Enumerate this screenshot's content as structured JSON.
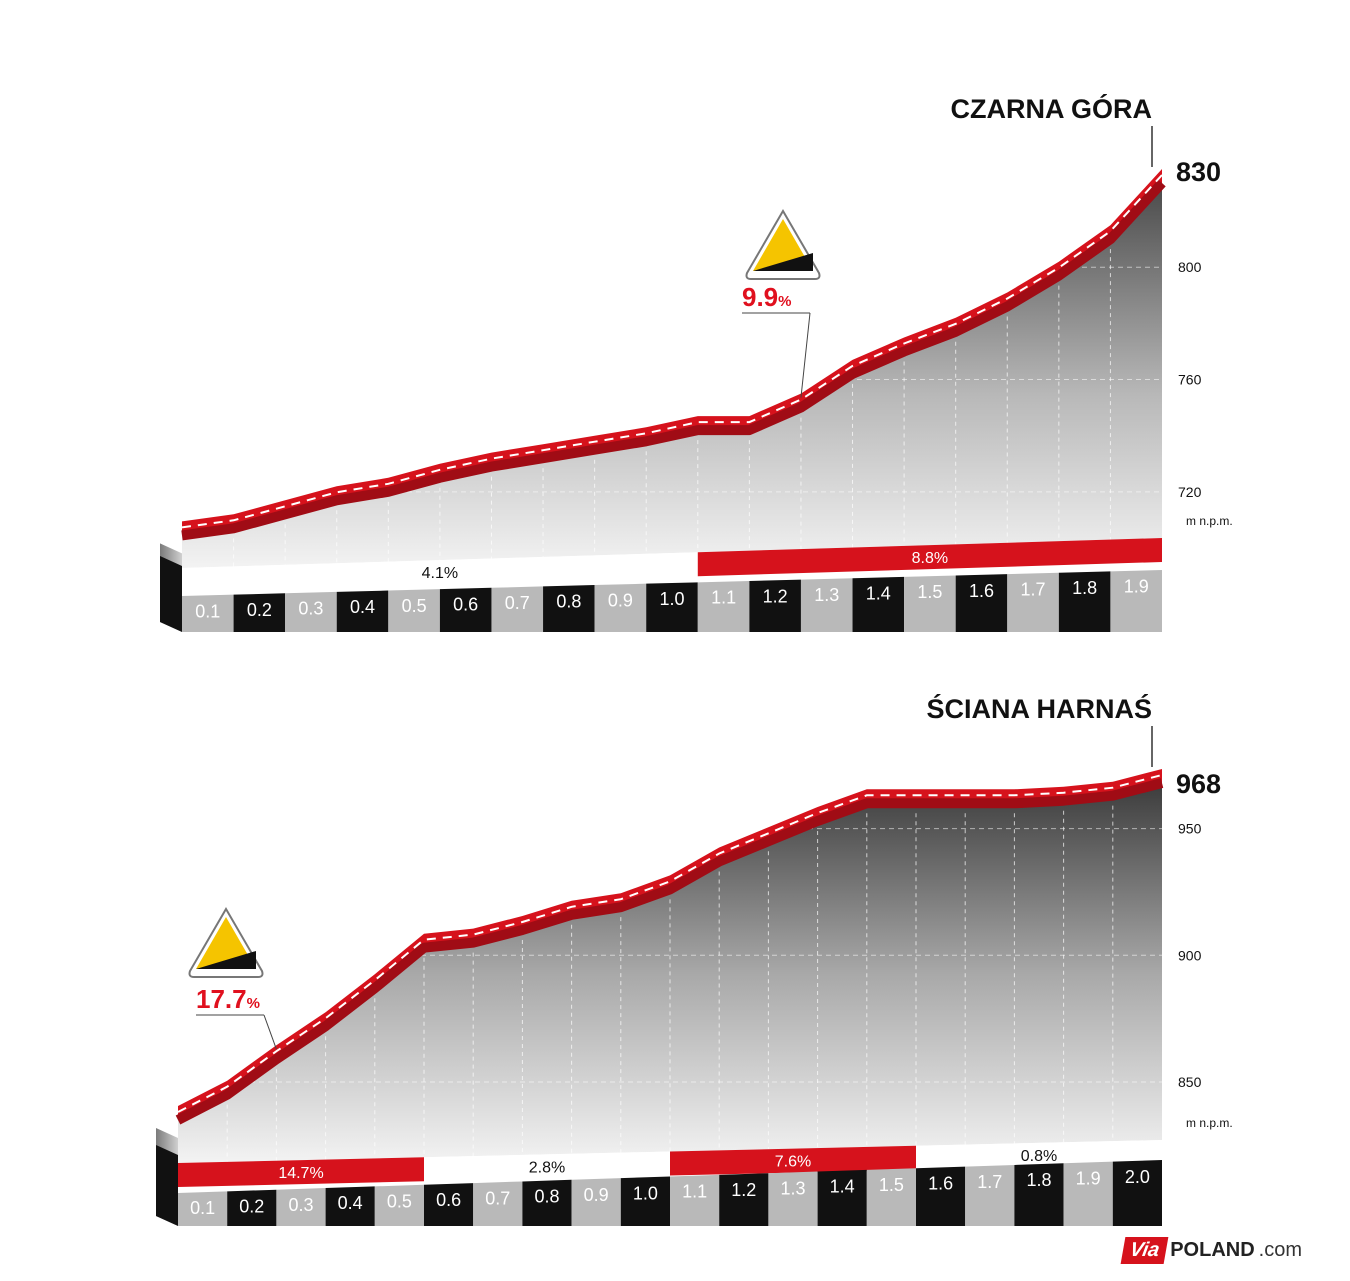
{
  "logo": {
    "brand": "Via",
    "name": "POLAND",
    "suffix": ".com"
  },
  "colors": {
    "red": "#d6121c",
    "red_dark": "#a00c15",
    "black": "#111111",
    "grey_cell": "#b9b9b9",
    "pct_red": "#e0101e"
  },
  "chart_data": [
    {
      "type": "area",
      "title": "CZARNA GÓRA",
      "summit_altitude": "830",
      "ylabel": "m n.p.m.",
      "y_ticks": [
        720,
        760,
        800
      ],
      "ylim": [
        700,
        830
      ],
      "x": [
        0,
        0.1,
        0.2,
        0.3,
        0.4,
        0.5,
        0.6,
        0.7,
        0.8,
        0.9,
        1.0,
        1.1,
        1.2,
        1.3,
        1.4,
        1.5,
        1.6,
        1.7,
        1.8,
        1.9
      ],
      "elevation": [
        704.5,
        707,
        712,
        717,
        720,
        725,
        729,
        732,
        735,
        738,
        742,
        742,
        750,
        762,
        770,
        777,
        786,
        797,
        810,
        830
      ],
      "km_labels": [
        "0.1",
        "0.2",
        "0.3",
        "0.4",
        "0.5",
        "0.6",
        "0.7",
        "0.8",
        "0.9",
        "1.0",
        "1.1",
        "1.2",
        "1.3",
        "1.4",
        "1.5",
        "1.6",
        "1.7",
        "1.8",
        "1.9"
      ],
      "gradient_segments": [
        {
          "label": "4.1%",
          "from": 0,
          "to": 10,
          "style": "white"
        },
        {
          "label": "8.8%",
          "from": 10,
          "to": 19,
          "style": "red"
        }
      ],
      "max_gradient": {
        "value": "9.9",
        "unit": "%"
      }
    },
    {
      "type": "area",
      "title": "ŚCIANA HARNAŚ",
      "summit_altitude": "968",
      "ylabel": "m n.p.m.",
      "y_ticks": [
        850,
        900,
        950
      ],
      "ylim": [
        835,
        968
      ],
      "x": [
        0,
        0.1,
        0.2,
        0.3,
        0.4,
        0.5,
        0.6,
        0.7,
        0.8,
        0.9,
        1.0,
        1.1,
        1.2,
        1.3,
        1.4,
        1.5,
        1.6,
        1.7,
        1.8,
        1.9,
        2.0
      ],
      "elevation": [
        835,
        845,
        859,
        872,
        887,
        903,
        905,
        910,
        916,
        919,
        926,
        937,
        945,
        953,
        960,
        960,
        960,
        960,
        961,
        963,
        968
      ],
      "km_labels": [
        "0.1",
        "0.2",
        "0.3",
        "0.4",
        "0.5",
        "0.6",
        "0.7",
        "0.8",
        "0.9",
        "1.0",
        "1.1",
        "1.2",
        "1.3",
        "1.4",
        "1.5",
        "1.6",
        "1.7",
        "1.8",
        "1.9",
        "2.0"
      ],
      "gradient_segments": [
        {
          "label": "14.7%",
          "from": 0,
          "to": 5,
          "style": "red"
        },
        {
          "label": "2.8%",
          "from": 5,
          "to": 10,
          "style": "white"
        },
        {
          "label": "7.6%",
          "from": 10,
          "to": 15,
          "style": "red"
        },
        {
          "label": "0.8%",
          "from": 15,
          "to": 20,
          "style": "white"
        }
      ],
      "max_gradient": {
        "value": "17.7",
        "unit": "%"
      }
    }
  ]
}
